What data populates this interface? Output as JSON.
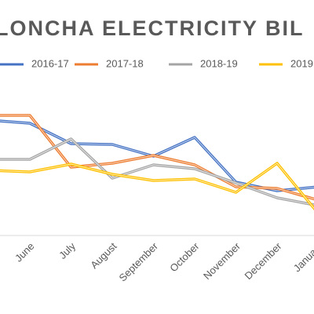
{
  "chart_data": {
    "type": "line",
    "title": "LONCHA ELECTRICITY BIL",
    "categories": [
      null,
      "June",
      "July",
      "August",
      "September",
      "October",
      "November",
      "December",
      "January"
    ],
    "series": [
      {
        "name": "2016-17",
        "color": "#4472c4",
        "values": [
          147,
          143,
          117,
          116,
          101,
          125,
          68,
          57,
          62
        ]
      },
      {
        "name": "2017-18",
        "color": "#ed7d31",
        "values": [
          153,
          153,
          87,
          92,
          102,
          90,
          62,
          60,
          45
        ]
      },
      {
        "name": "2018-19",
        "color": "#a5a5a5",
        "values": [
          97,
          97,
          123,
          73,
          90,
          85,
          67,
          48,
          38
        ]
      },
      {
        "name": "2019",
        "color": "#ffc000",
        "values": [
          83,
          81,
          91,
          78,
          70,
          72,
          55,
          92,
          28
        ]
      }
    ],
    "ylim": [
      0,
      200
    ],
    "legend": "top"
  }
}
